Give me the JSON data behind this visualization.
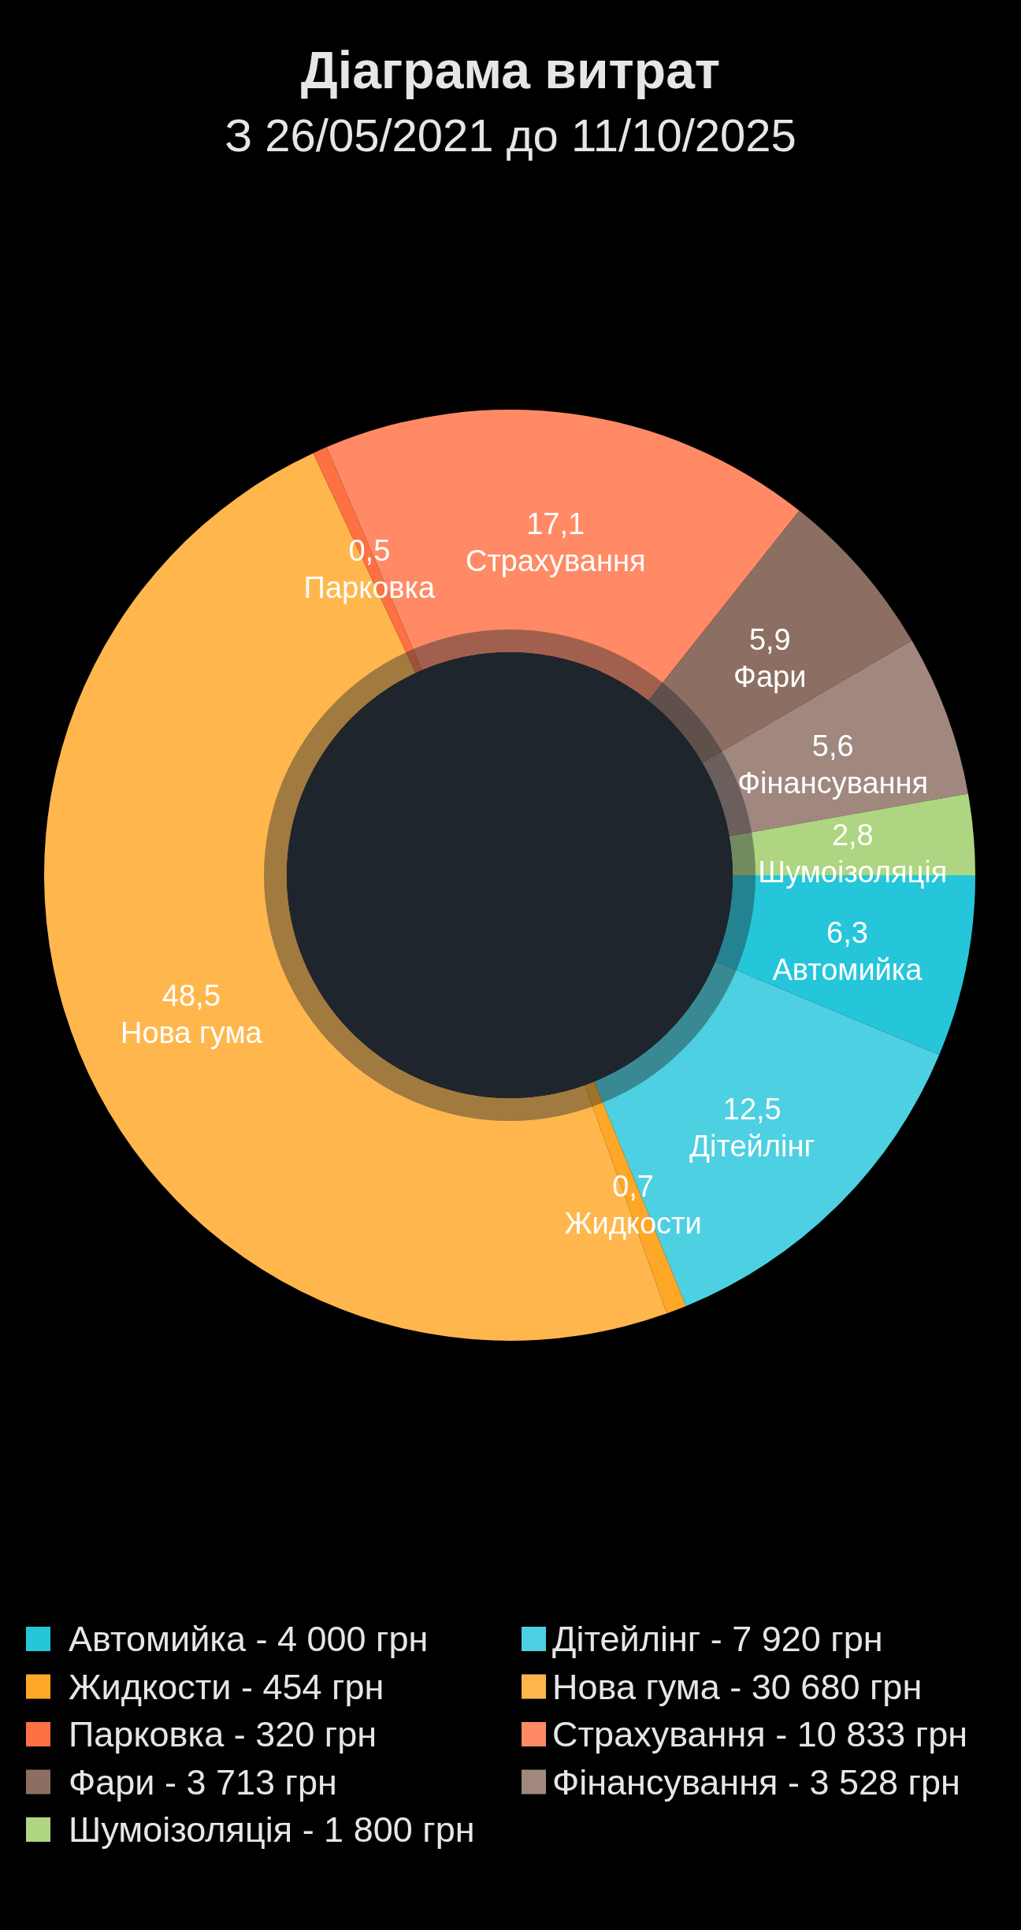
{
  "chart_data": {
    "type": "donut",
    "title": "Діаграма витрат",
    "subtitle": "З 26/05/2021 до 11/10/2025",
    "categories": [
      "Автомийка",
      "Дітейлінг",
      "Жидкости",
      "Нова гума",
      "Парковка",
      "Страхування",
      "Фари",
      "Фінансування",
      "Шумоізоляція"
    ],
    "values": [
      6.3,
      12.5,
      0.7,
      48.5,
      0.5,
      17.1,
      5.9,
      5.6,
      2.8
    ],
    "colors": [
      "#26c6da",
      "#4dd0e1",
      "#ffa726",
      "#ffb74d",
      "#ff7043",
      "#ff8a65",
      "#8d6e63",
      "#a1887f",
      "#aed581"
    ],
    "value_labels": [
      "6,3",
      "12,5",
      "0,7",
      "48,5",
      "0,5",
      "17,1",
      "5,9",
      "5,6",
      "2,8"
    ],
    "annotations": [
      "- 4 000 грн",
      "- 7 920 грн",
      "- 454 грн",
      "- 30 680 грн",
      "- 320 грн",
      "- 10 833 грн",
      "- 3 713 грн",
      "- 3 528 грн",
      "- 1 800 грн"
    ],
    "legend": "bottom"
  }
}
